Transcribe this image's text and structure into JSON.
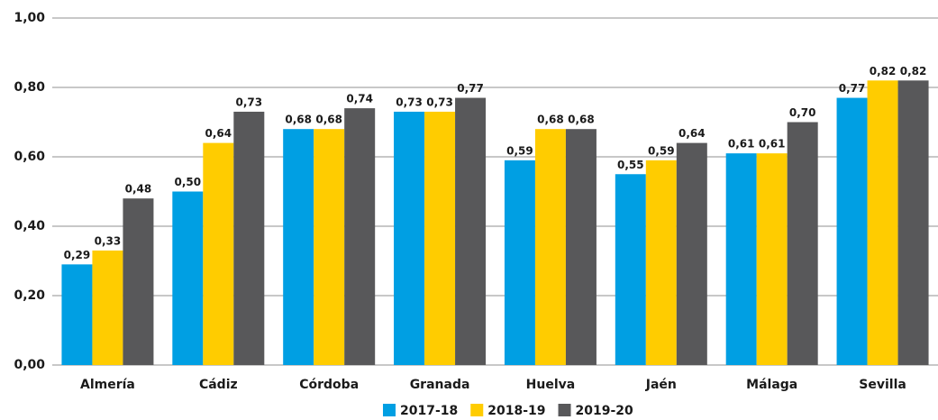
{
  "chart_data": {
    "type": "bar",
    "categories": [
      "Almería",
      "Cádiz",
      "Córdoba",
      "Granada",
      "Huelva",
      "Jaén",
      "Málaga",
      "Sevilla"
    ],
    "series": [
      {
        "name": "2017-18",
        "color": "#009fe3",
        "values": [
          0.29,
          0.5,
          0.68,
          0.73,
          0.59,
          0.55,
          0.61,
          0.77
        ],
        "value_labels": [
          "0,29",
          "0,50",
          "0,68",
          "0,73",
          "0,59",
          "0,55",
          "0,61",
          "0,77"
        ]
      },
      {
        "name": "2018-19",
        "color": "#ffcc00",
        "values": [
          0.33,
          0.64,
          0.68,
          0.73,
          0.68,
          0.59,
          0.61,
          0.82
        ],
        "value_labels": [
          "0,33",
          "0,64",
          "0,68",
          "0,73",
          "0,68",
          "0,59",
          "0,61",
          "0,82"
        ]
      },
      {
        "name": "2019-20",
        "color": "#58585a",
        "values": [
          0.48,
          0.73,
          0.74,
          0.77,
          0.68,
          0.64,
          0.7,
          0.82
        ],
        "value_labels": [
          "0,48",
          "0,73",
          "0,74",
          "0,77",
          "0,68",
          "0,64",
          "0,70",
          "0,82"
        ]
      }
    ],
    "ylim": [
      0,
      1
    ],
    "yticks": [
      {
        "value": 0,
        "label": "0,00"
      },
      {
        "value": 0.2,
        "label": "0,20"
      },
      {
        "value": 0.4,
        "label": "0,40"
      },
      {
        "value": 0.6,
        "label": "0,60"
      },
      {
        "value": 0.8,
        "label": "0,80"
      },
      {
        "value": 1,
        "label": "1,00"
      }
    ],
    "grid": true
  }
}
